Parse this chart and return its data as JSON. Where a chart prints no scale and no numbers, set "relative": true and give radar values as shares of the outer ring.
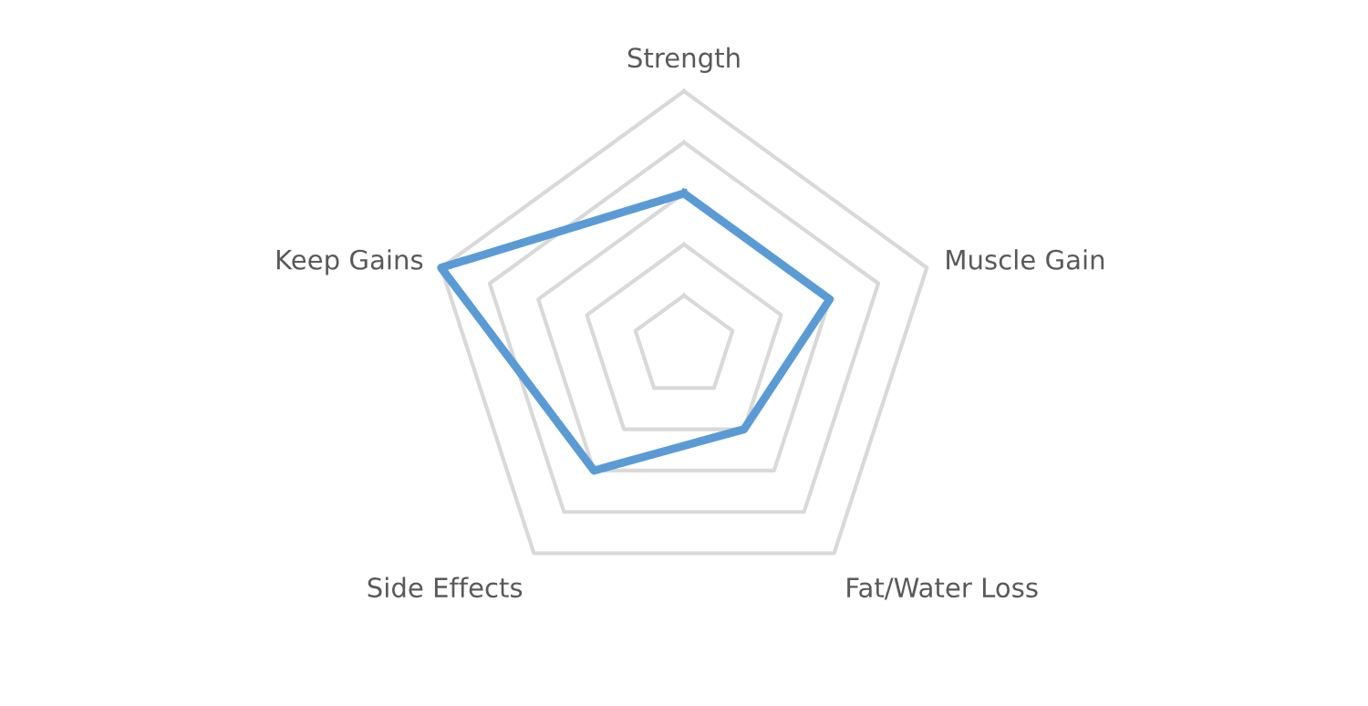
{
  "chart_data": {
    "type": "radar",
    "relative": true,
    "grid": true,
    "categories": [
      "Strength",
      "Muscle Gain",
      "Fat/Water Loss",
      "Side Effects",
      "Keep Gains"
    ],
    "series": [
      {
        "color": "#5b9bd5",
        "values": [
          0.6,
          0.6,
          0.4,
          0.6,
          1.0
        ]
      }
    ]
  }
}
